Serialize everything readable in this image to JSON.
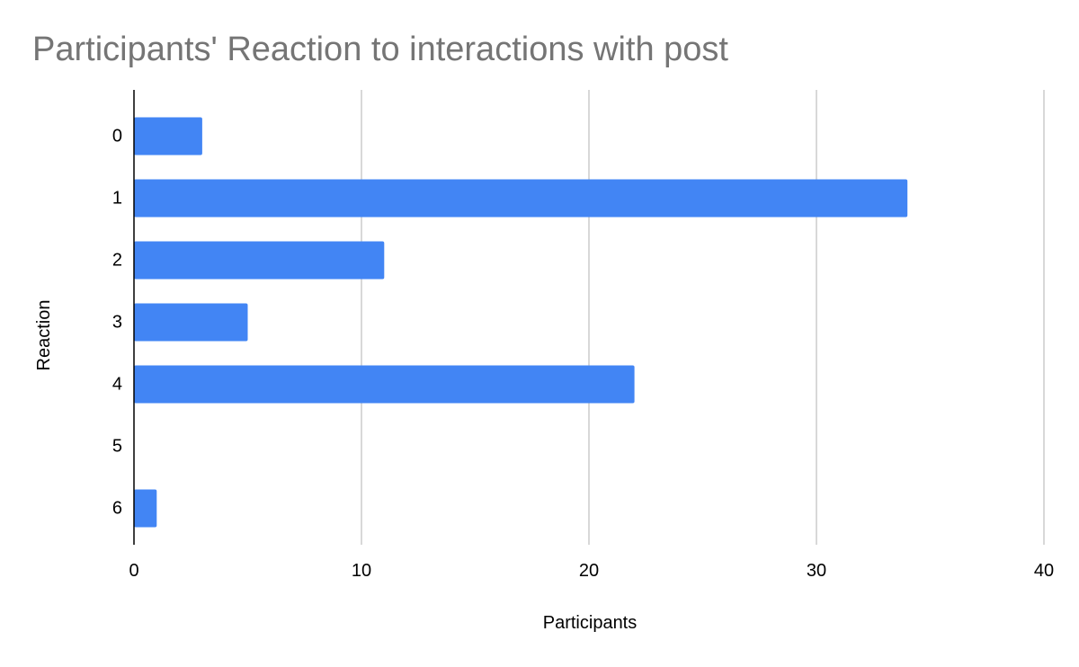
{
  "chart_data": {
    "type": "bar",
    "orientation": "horizontal",
    "title": "Participants' Reaction to interactions with post",
    "xlabel": "Participants",
    "ylabel": "Reaction",
    "categories": [
      "0",
      "1",
      "2",
      "3",
      "4",
      "5",
      "6"
    ],
    "values": [
      3,
      34,
      11,
      5,
      22,
      0,
      1
    ],
    "xlim": [
      0,
      40
    ],
    "xticks": [
      0,
      10,
      20,
      30,
      40
    ],
    "grid": "vertical",
    "legend": "none",
    "colors": {
      "bar": "#4285F4",
      "grid": "#cccccc",
      "axis": "#000000",
      "title": "#757575"
    }
  }
}
